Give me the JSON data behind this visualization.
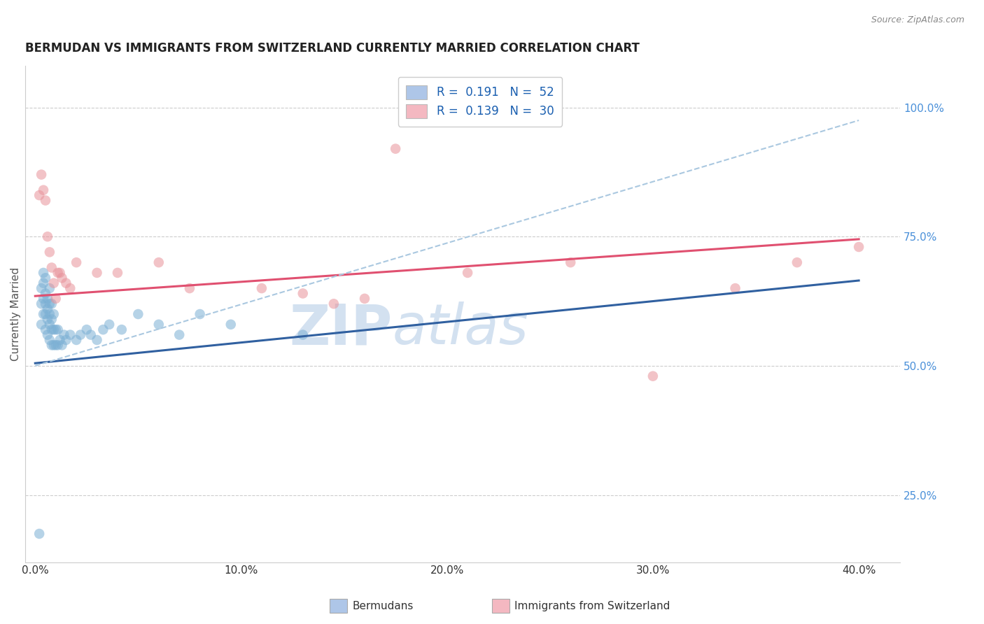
{
  "title": "BERMUDAN VS IMMIGRANTS FROM SWITZERLAND CURRENTLY MARRIED CORRELATION CHART",
  "source_text": "Source: ZipAtlas.com",
  "ylabel": "Currently Married",
  "x_tick_labels": [
    "0.0%",
    "10.0%",
    "20.0%",
    "30.0%",
    "40.0%"
  ],
  "x_tick_values": [
    0.0,
    0.1,
    0.2,
    0.3,
    0.4
  ],
  "y_tick_labels": [
    "25.0%",
    "50.0%",
    "75.0%",
    "100.0%"
  ],
  "y_tick_values": [
    0.25,
    0.5,
    0.75,
    1.0
  ],
  "xlim": [
    -0.005,
    0.42
  ],
  "ylim": [
    0.12,
    1.08
  ],
  "legend_label_1": "R =  0.191   N =  52",
  "legend_label_2": "R =  0.139   N =  30",
  "legend_color_1": "#aec6e8",
  "legend_color_2": "#f4b8c1",
  "title_fontsize": 12,
  "label_fontsize": 11,
  "tick_fontsize": 11,
  "blue_scatter_x": [
    0.002,
    0.003,
    0.003,
    0.003,
    0.004,
    0.004,
    0.004,
    0.004,
    0.005,
    0.005,
    0.005,
    0.005,
    0.005,
    0.006,
    0.006,
    0.006,
    0.006,
    0.007,
    0.007,
    0.007,
    0.007,
    0.007,
    0.008,
    0.008,
    0.008,
    0.008,
    0.009,
    0.009,
    0.009,
    0.01,
    0.01,
    0.011,
    0.011,
    0.012,
    0.013,
    0.014,
    0.015,
    0.017,
    0.02,
    0.022,
    0.025,
    0.027,
    0.03,
    0.033,
    0.036,
    0.042,
    0.05,
    0.06,
    0.07,
    0.08,
    0.095,
    0.13
  ],
  "blue_scatter_y": [
    0.175,
    0.58,
    0.62,
    0.65,
    0.6,
    0.63,
    0.66,
    0.68,
    0.57,
    0.6,
    0.62,
    0.64,
    0.67,
    0.56,
    0.59,
    0.61,
    0.63,
    0.55,
    0.58,
    0.6,
    0.62,
    0.65,
    0.54,
    0.57,
    0.59,
    0.62,
    0.54,
    0.57,
    0.6,
    0.54,
    0.57,
    0.54,
    0.57,
    0.55,
    0.54,
    0.56,
    0.55,
    0.56,
    0.55,
    0.56,
    0.57,
    0.56,
    0.55,
    0.57,
    0.58,
    0.57,
    0.6,
    0.58,
    0.56,
    0.6,
    0.58,
    0.56
  ],
  "pink_scatter_x": [
    0.002,
    0.003,
    0.004,
    0.005,
    0.006,
    0.007,
    0.008,
    0.009,
    0.01,
    0.011,
    0.012,
    0.013,
    0.015,
    0.017,
    0.02,
    0.03,
    0.04,
    0.06,
    0.075,
    0.11,
    0.13,
    0.145,
    0.16,
    0.175,
    0.21,
    0.26,
    0.3,
    0.34,
    0.37,
    0.4
  ],
  "pink_scatter_y": [
    0.83,
    0.87,
    0.84,
    0.82,
    0.75,
    0.72,
    0.69,
    0.66,
    0.63,
    0.68,
    0.68,
    0.67,
    0.66,
    0.65,
    0.7,
    0.68,
    0.68,
    0.7,
    0.65,
    0.65,
    0.64,
    0.62,
    0.63,
    0.92,
    0.68,
    0.7,
    0.48,
    0.65,
    0.7,
    0.73
  ],
  "blue_line_x": [
    0.0,
    0.4
  ],
  "blue_line_y": [
    0.505,
    0.665
  ],
  "pink_line_x": [
    0.0,
    0.4
  ],
  "pink_line_y": [
    0.635,
    0.745
  ],
  "dashed_line_x": [
    0.0,
    0.4
  ],
  "dashed_line_y": [
    0.5,
    0.975
  ],
  "scatter_color_blue": "#7bafd4",
  "scatter_color_pink": "#e8929a",
  "line_color_blue": "#3060a0",
  "line_color_pink": "#e05070",
  "dashed_line_color": "#aac8e0",
  "background_color": "#ffffff",
  "grid_color": "#cccccc"
}
